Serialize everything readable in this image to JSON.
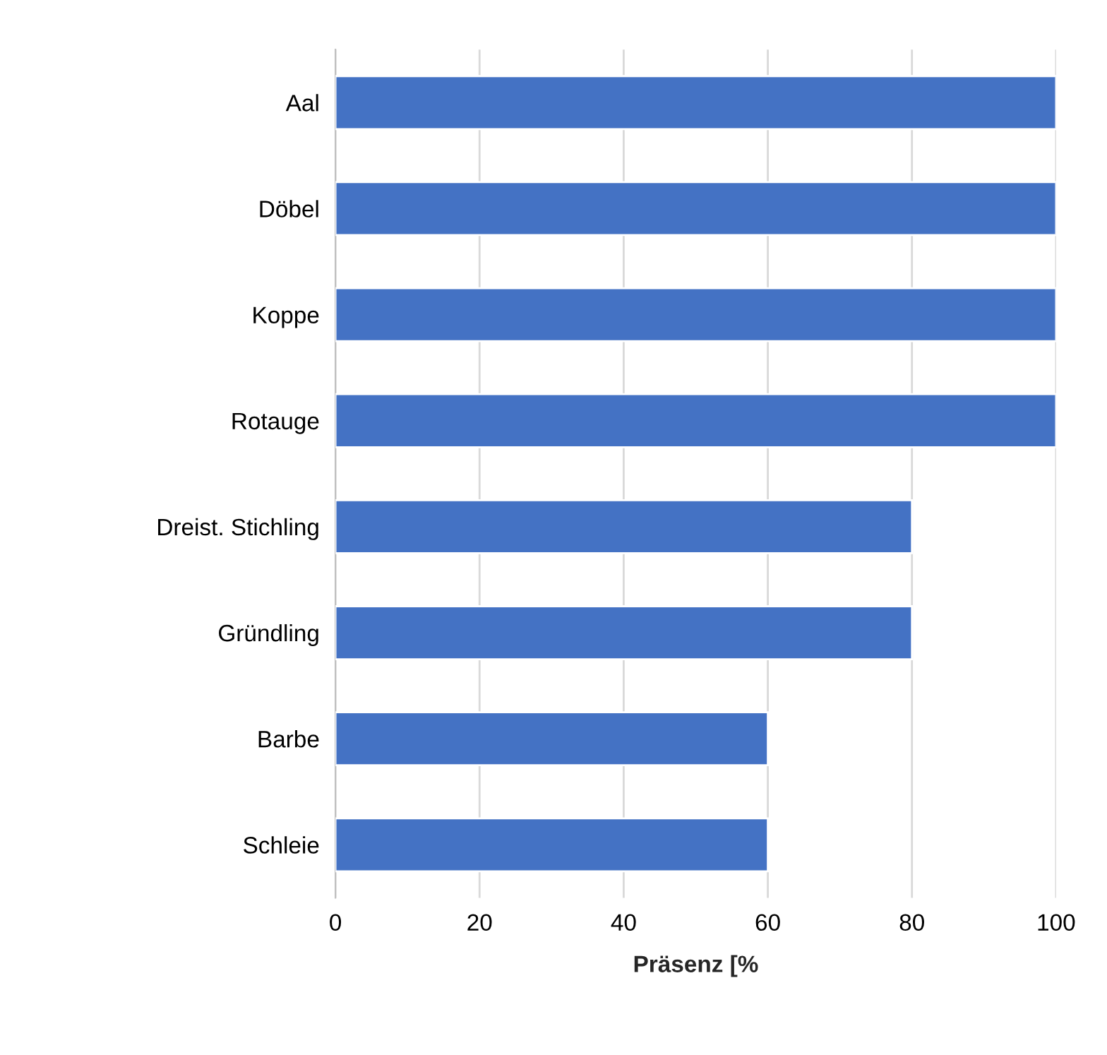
{
  "chart_data": {
    "type": "bar",
    "orientation": "horizontal",
    "xlabel": "Präsenz [%",
    "categories": [
      "Aal",
      "Döbel",
      "Koppe",
      "Rotauge",
      "Dreist. Stichling",
      "Gründling",
      "Barbe",
      "Schleie"
    ],
    "values": [
      100,
      100,
      100,
      100,
      80,
      80,
      60,
      60
    ],
    "color": "#4472c4",
    "xlim": [
      0,
      100
    ],
    "xticks": [
      0,
      20,
      40,
      60,
      80,
      100
    ],
    "grid": "x",
    "legend": false
  }
}
